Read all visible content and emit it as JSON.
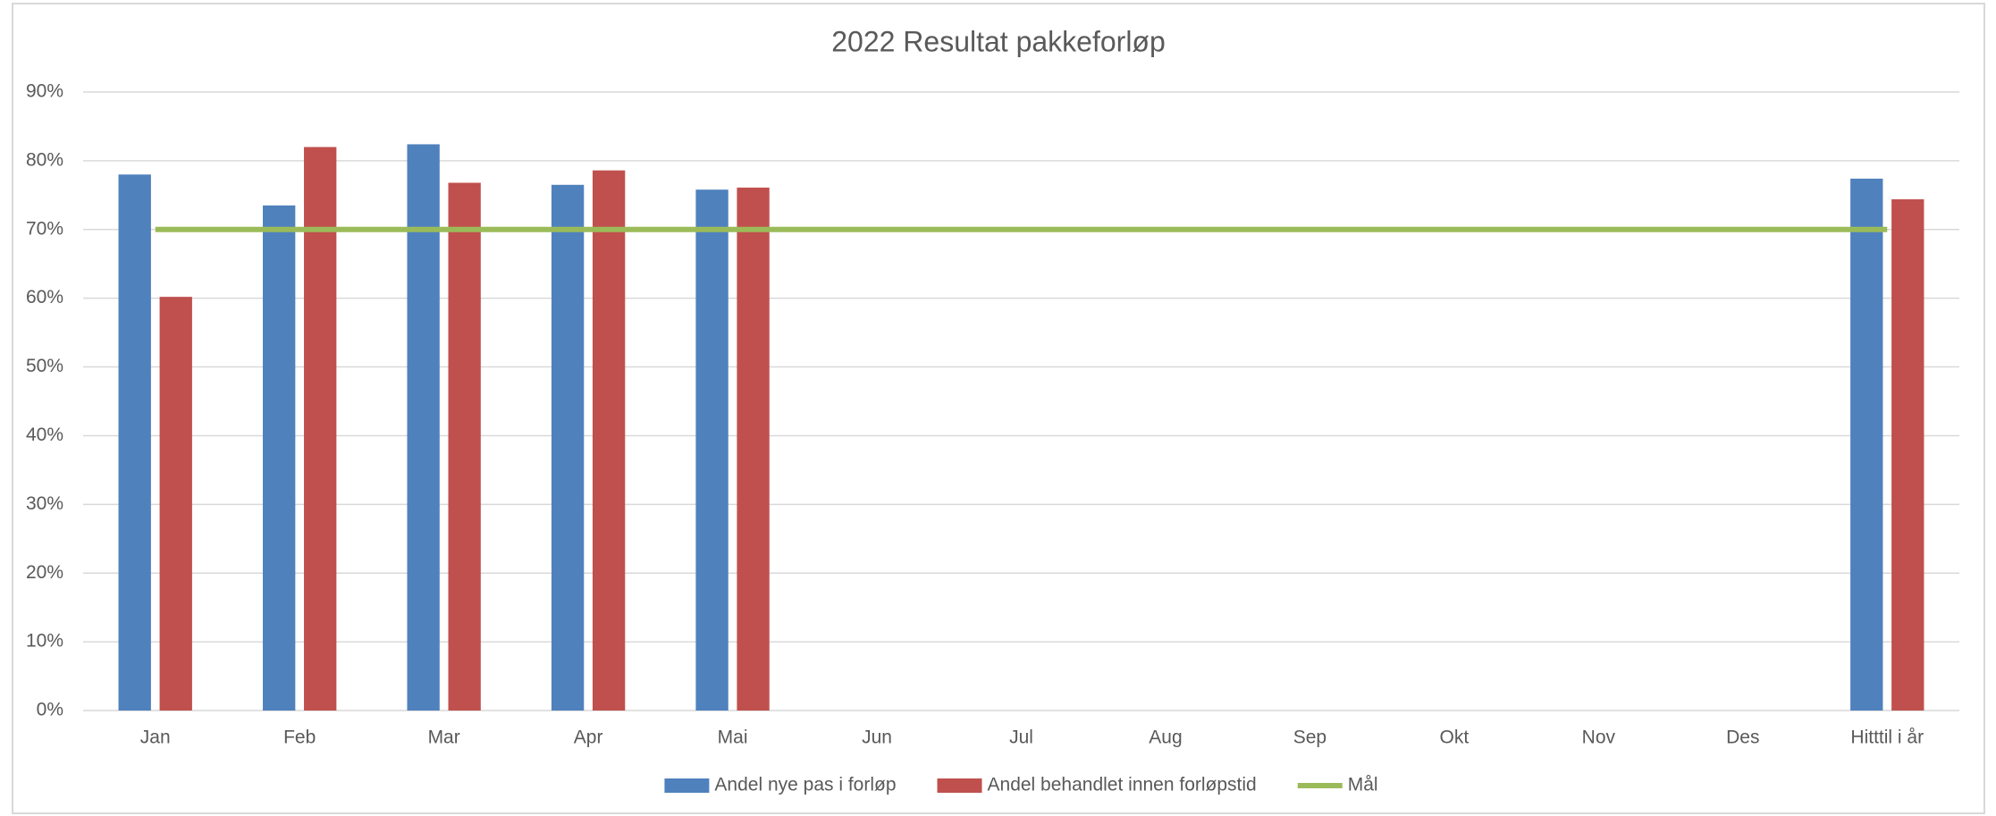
{
  "chart_data": {
    "type": "bar",
    "title": "2022 Resultat pakkeforløp",
    "categories": [
      "Jan",
      "Feb",
      "Mar",
      "Apr",
      "Mai",
      "Jun",
      "Jul",
      "Aug",
      "Sep",
      "Okt",
      "Nov",
      "Des",
      "Hitttil i år"
    ],
    "series": [
      {
        "name": "Andel nye pas i forløp",
        "color": "#4f81bd",
        "type": "bar",
        "values": [
          78,
          73.5,
          82.4,
          76.5,
          75.8,
          null,
          null,
          null,
          null,
          null,
          null,
          null,
          77.4
        ]
      },
      {
        "name": "Andel behandlet innen forløpstid",
        "color": "#c0504d",
        "type": "bar",
        "values": [
          60.2,
          82,
          76.8,
          78.6,
          76.1,
          null,
          null,
          null,
          null,
          null,
          null,
          null,
          74.4
        ]
      },
      {
        "name": "Mål",
        "color": "#9bbb59",
        "type": "line",
        "values": [
          70,
          70,
          70,
          70,
          70,
          70,
          70,
          70,
          70,
          70,
          70,
          70,
          70
        ]
      }
    ],
    "ylim": [
      0,
      90
    ],
    "yticks": [
      {
        "value": 0,
        "label": "0%"
      },
      {
        "value": 10,
        "label": "10%"
      },
      {
        "value": 20,
        "label": "20%"
      },
      {
        "value": 30,
        "label": "30%"
      },
      {
        "value": 40,
        "label": "40%"
      },
      {
        "value": 50,
        "label": "50%"
      },
      {
        "value": 60,
        "label": "60%"
      },
      {
        "value": 70,
        "label": "70%"
      },
      {
        "value": 80,
        "label": "80%"
      },
      {
        "value": 90,
        "label": "90%"
      }
    ],
    "grid": true,
    "legend": "bottom"
  }
}
